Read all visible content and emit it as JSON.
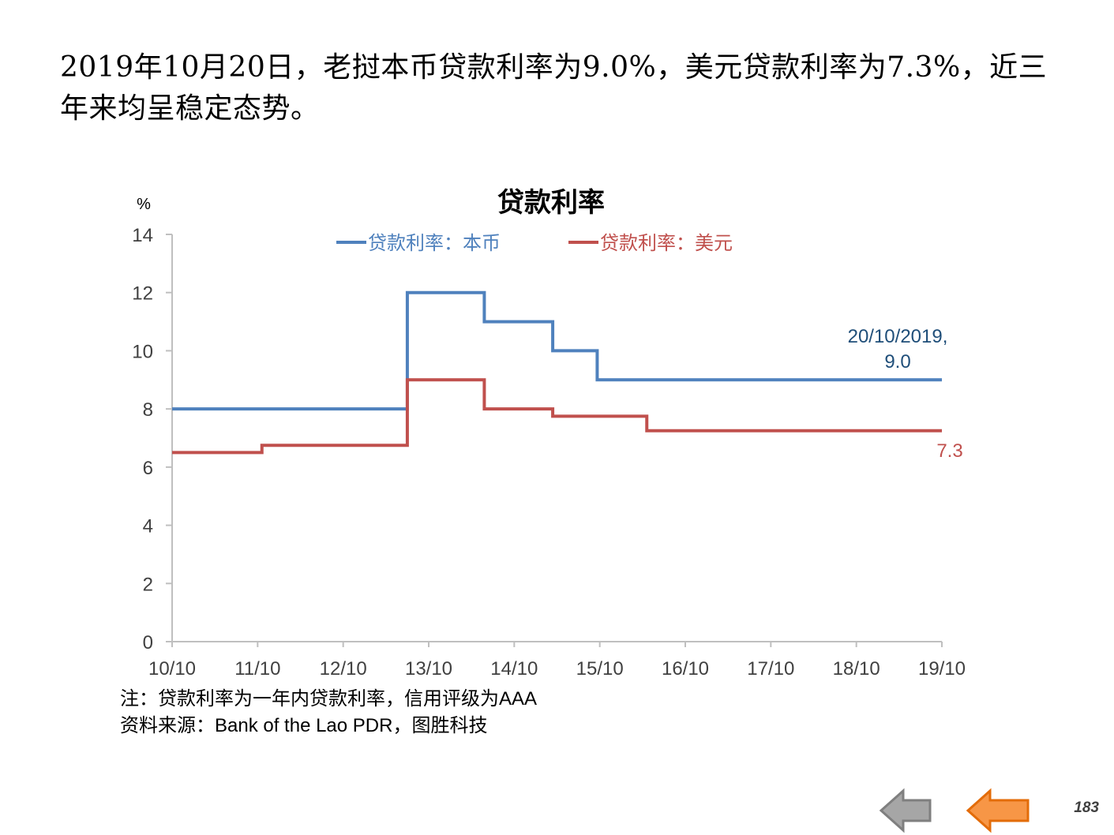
{
  "headline": {
    "line1": "2019年10月20日，老挝本币贷款利率为9.0%，美元贷款利率为7.3%，近三",
    "line2": "年来均呈稳定态势。"
  },
  "notes": {
    "note": "注：贷款利率为一年内贷款利率，信用评级为AAA",
    "source": "资料来源：Bank of the Lao PDR，图胜科技"
  },
  "page_number": "183",
  "navigation": {
    "back_icon": "left-arrow-gray-icon",
    "prev_icon": "left-arrow-orange-icon"
  },
  "chart_data": {
    "type": "line",
    "title": "贷款利率",
    "ylabel": "%",
    "xlabel": "",
    "ylim": [
      0,
      14
    ],
    "yticks": [
      "0",
      "2",
      "4",
      "6",
      "8",
      "10",
      "12",
      "14"
    ],
    "xlim": [
      2010.0,
      2019.0
    ],
    "xticks": [
      "10/10",
      "11/10",
      "12/10",
      "13/10",
      "14/10",
      "15/10",
      "16/10",
      "17/10",
      "18/10",
      "19/10"
    ],
    "grid": false,
    "legend_position": "top",
    "step": true,
    "series": [
      {
        "name": "贷款利率：本币",
        "color": "#4F81BD",
        "x": [
          2010.0,
          2012.75,
          2013.65,
          2014.45,
          2014.97,
          2019.0
        ],
        "values": [
          8.0,
          12.0,
          11.0,
          10.0,
          9.0,
          9.0
        ]
      },
      {
        "name": "贷款利率：美元",
        "color": "#C0504D",
        "x": [
          2010.0,
          2011.05,
          2012.75,
          2013.65,
          2014.45,
          2015.55,
          2019.0
        ],
        "values": [
          6.5,
          6.75,
          9.0,
          8.0,
          7.75,
          7.25,
          7.25
        ]
      }
    ],
    "annotations": [
      {
        "text_line1": "20/10/2019,",
        "text_line2": "9.0",
        "series": 0,
        "color": "#1F4E79"
      },
      {
        "text_line1": "7.3",
        "text_line2": "",
        "series": 1,
        "color": "#C0504D"
      }
    ]
  }
}
